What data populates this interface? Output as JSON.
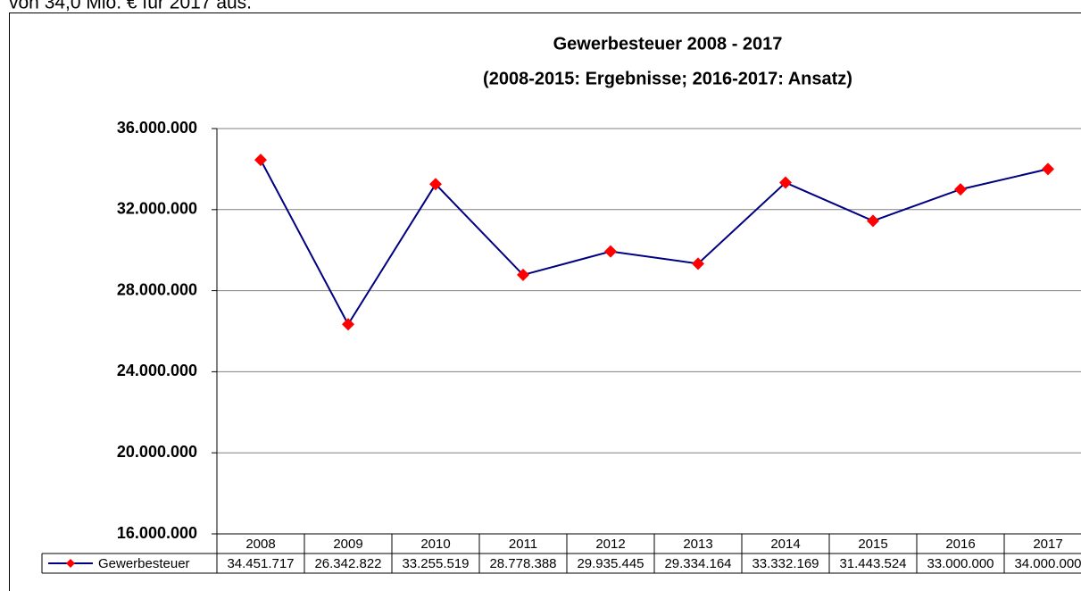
{
  "intro_text": "von 34,0 Mio. € für 2017 aus.",
  "chart_data": {
    "type": "line",
    "title": "Gewerbesteuer 2008 - 2017",
    "subtitle": "(2008-2015: Ergebnisse; 2016-2017: Ansatz)",
    "categories": [
      "2008",
      "2009",
      "2010",
      "2011",
      "2012",
      "2013",
      "2014",
      "2015",
      "2016",
      "2017"
    ],
    "series": [
      {
        "name": "Gewerbesteuer",
        "color": "#000080",
        "marker_color": "#ff0000",
        "values": [
          34451717,
          26342822,
          33255519,
          28778388,
          29935445,
          29334164,
          33332169,
          31443524,
          33000000,
          34000000
        ],
        "value_labels": [
          "34.451.717",
          "26.342.822",
          "33.255.519",
          "28.778.388",
          "29.935.445",
          "29.334.164",
          "33.332.169",
          "31.443.524",
          "33.000.000",
          "34.000.000"
        ]
      }
    ],
    "ylim": [
      16000000,
      36000000
    ],
    "yticks": [
      {
        "value": 16000000,
        "label": "16.000.000"
      },
      {
        "value": 20000000,
        "label": "20.000.000"
      },
      {
        "value": 24000000,
        "label": "24.000.000"
      },
      {
        "value": 28000000,
        "label": "28.000.000"
      },
      {
        "value": 32000000,
        "label": "32.000.000"
      },
      {
        "value": 36000000,
        "label": "36.000.000"
      }
    ],
    "grid": true,
    "data_table": true
  }
}
